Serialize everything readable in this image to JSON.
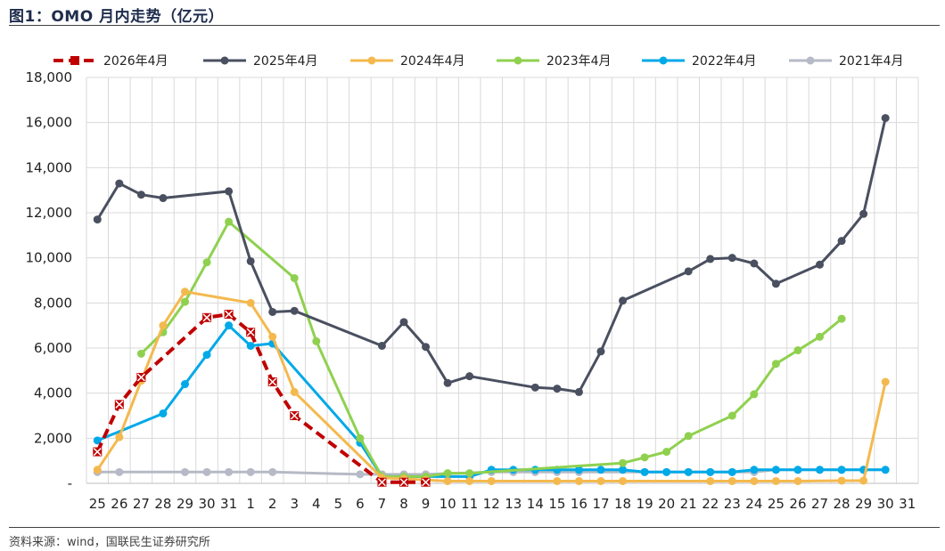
{
  "title": "图1：OMO 月内走势（亿元）",
  "source": "资料来源：wind，国联民生证券研究所",
  "chart_data": {
    "type": "line",
    "categories": [
      "25",
      "26",
      "27",
      "28",
      "29",
      "30",
      "31",
      "1",
      "2",
      "3",
      "4",
      "5",
      "6",
      "7",
      "8",
      "9",
      "10",
      "11",
      "12",
      "13",
      "14",
      "15",
      "16",
      "17",
      "18",
      "19",
      "20",
      "21",
      "22",
      "23",
      "24",
      "25",
      "26",
      "27",
      "28",
      "29",
      "30",
      "31"
    ],
    "ylim": [
      0,
      18000
    ],
    "yticks": [
      {
        "value": 0,
        "label": "-"
      },
      {
        "value": 2000,
        "label": "2,000"
      },
      {
        "value": 4000,
        "label": "4,000"
      },
      {
        "value": 6000,
        "label": "6,000"
      },
      {
        "value": 8000,
        "label": "8,000"
      },
      {
        "value": 10000,
        "label": "10,000"
      },
      {
        "value": 12000,
        "label": "12,000"
      },
      {
        "value": 14000,
        "label": "14,000"
      },
      {
        "value": 16000,
        "label": "16,000"
      },
      {
        "value": 18000,
        "label": "18,000"
      }
    ],
    "grid": true,
    "legend_position": "top",
    "series": [
      {
        "name": "2026年4月",
        "color": "#c00000",
        "dashed": true,
        "marker": "x",
        "values": [
          1400,
          3500,
          4700,
          null,
          null,
          7350,
          7500,
          6700,
          4500,
          3000,
          null,
          null,
          null,
          50,
          50,
          50,
          null,
          null,
          null,
          null,
          null,
          null,
          null,
          null,
          null,
          null,
          null,
          null,
          null,
          null,
          null,
          null,
          null,
          null,
          null,
          null,
          null,
          null
        ]
      },
      {
        "name": "2025年4月",
        "color": "#4a5060",
        "marker": "circle",
        "values": [
          11700,
          13300,
          12800,
          12650,
          null,
          null,
          12950,
          9850,
          7600,
          7650,
          null,
          null,
          null,
          6100,
          7150,
          6050,
          4450,
          4750,
          null,
          null,
          4250,
          4200,
          4050,
          5850,
          8100,
          null,
          null,
          9400,
          9950,
          10000,
          9750,
          8850,
          null,
          9700,
          10750,
          11950,
          16200,
          null
        ]
      },
      {
        "name": "2024年4月",
        "color": "#f4b94e",
        "marker": "circle",
        "values": [
          600,
          2050,
          4550,
          7000,
          8500,
          null,
          null,
          8000,
          6500,
          4050,
          null,
          null,
          null,
          250,
          200,
          150,
          100,
          100,
          100,
          null,
          null,
          100,
          100,
          100,
          100,
          null,
          null,
          null,
          100,
          100,
          100,
          100,
          100,
          null,
          120,
          120,
          4500,
          null
        ]
      },
      {
        "name": "2023年4月",
        "color": "#8fd14f",
        "marker": "circle",
        "values": [
          null,
          null,
          5750,
          6700,
          8050,
          9800,
          11600,
          null,
          null,
          9100,
          6300,
          null,
          2000,
          300,
          300,
          300,
          450,
          450,
          null,
          null,
          null,
          null,
          null,
          null,
          900,
          1150,
          1400,
          2100,
          null,
          3000,
          3950,
          5300,
          5900,
          6500,
          7300,
          null,
          null,
          null
        ]
      },
      {
        "name": "2022年4月",
        "color": "#00a9e8",
        "marker": "circle",
        "values": [
          1900,
          null,
          null,
          3100,
          4400,
          5700,
          7000,
          6100,
          6200,
          null,
          null,
          null,
          1800,
          300,
          null,
          null,
          null,
          300,
          600,
          600,
          600,
          600,
          600,
          600,
          600,
          500,
          500,
          500,
          500,
          500,
          600,
          600,
          600,
          600,
          600,
          600,
          600,
          null
        ]
      },
      {
        "name": "2021年4月",
        "color": "#b6bac6",
        "marker": "circle",
        "values": [
          500,
          500,
          null,
          null,
          500,
          500,
          500,
          500,
          500,
          null,
          null,
          null,
          400,
          400,
          400,
          400,
          null,
          null,
          500,
          500,
          500,
          500,
          500,
          null,
          null,
          500,
          500,
          500,
          500,
          500,
          500,
          600,
          600,
          600,
          600,
          600,
          600,
          null
        ]
      }
    ]
  }
}
